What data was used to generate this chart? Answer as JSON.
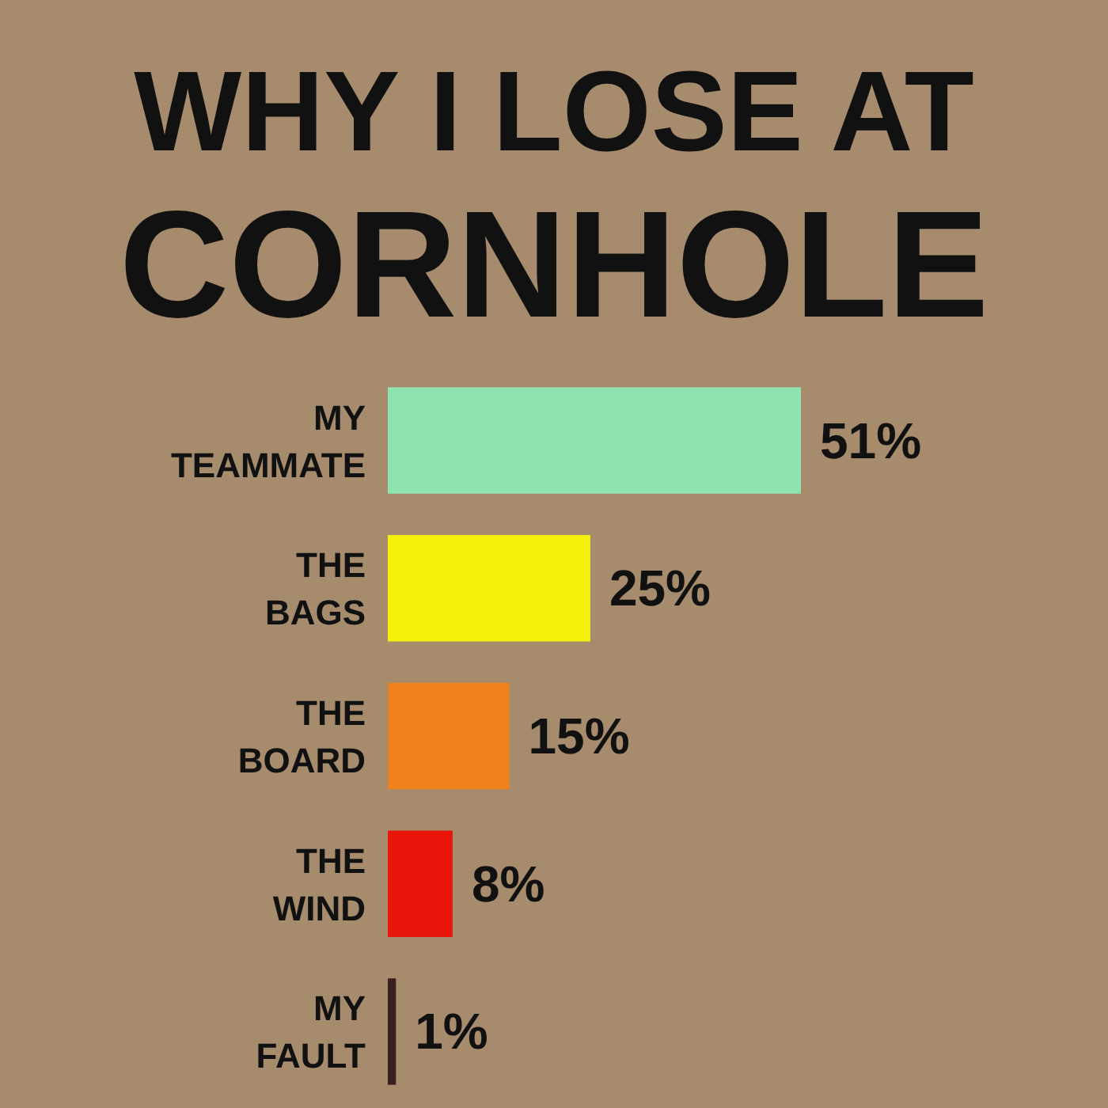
{
  "chart_data": {
    "type": "bar",
    "orientation": "horizontal",
    "title": "WHY I LOSE AT CORNHOLE",
    "categories": [
      "MY TEAMMATE",
      "THE BAGS",
      "THE BOARD",
      "THE WIND",
      "MY FAULT"
    ],
    "values": [
      51,
      25,
      15,
      8,
      1
    ],
    "colors": [
      "#8fe3b0",
      "#f5f00a",
      "#f0821e",
      "#e8150a",
      "#3a1f1f"
    ],
    "value_labels": [
      "51%",
      "25%",
      "15%",
      "8%",
      "1%"
    ]
  }
}
